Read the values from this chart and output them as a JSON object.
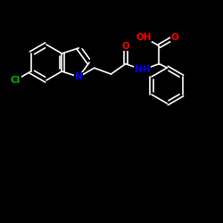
{
  "background": "#000000",
  "bond_color": "#ffffff",
  "atom_colors": {
    "N": "#0000ff",
    "O": "#ff0000",
    "Cl": "#00bb00",
    "C": "#ffffff"
  },
  "font_size": 7.5,
  "bond_width": 1.2,
  "figsize": [
    2.5,
    2.5
  ],
  "dpi": 100
}
